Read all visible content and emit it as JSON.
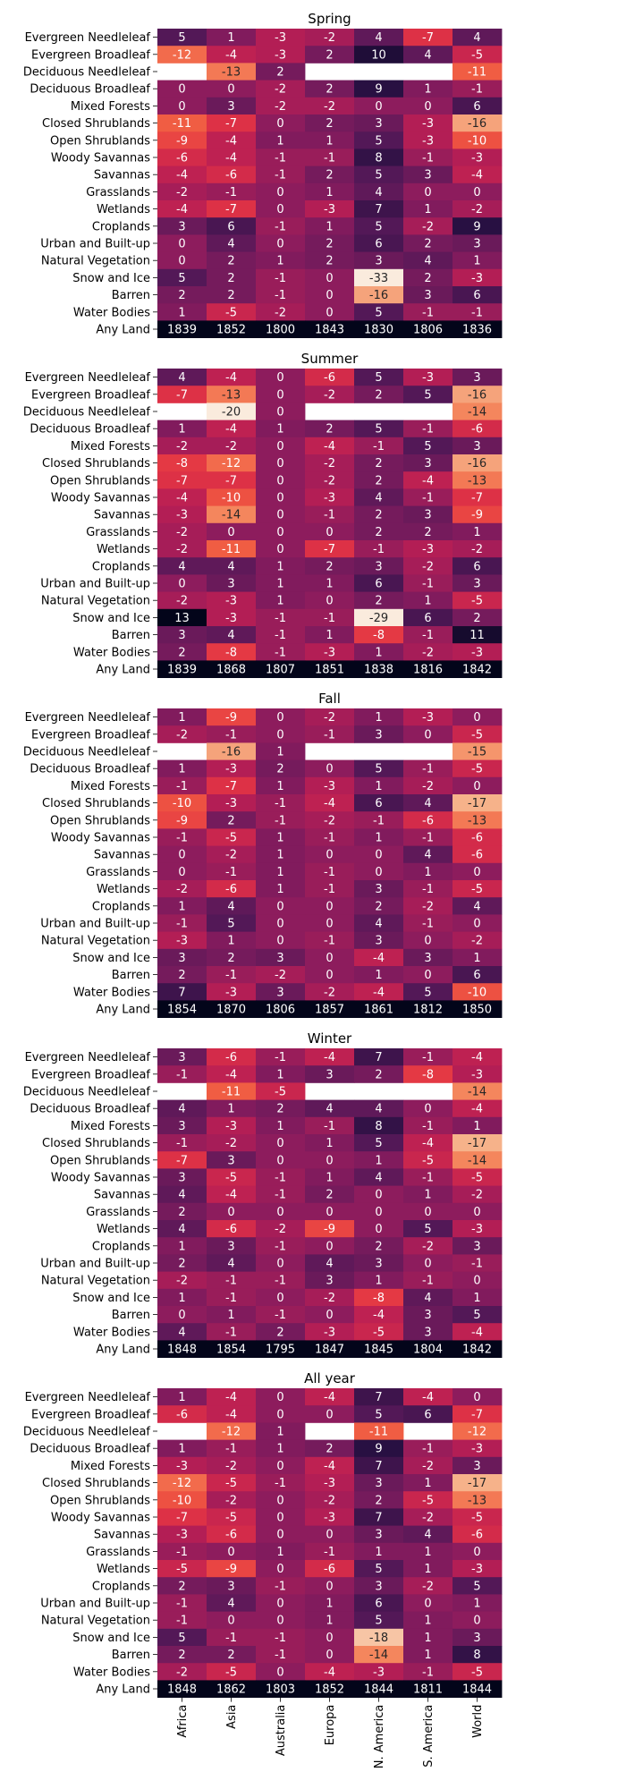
{
  "chart_data": {
    "type": "heatmap",
    "rows": [
      "Evergreen Needleleaf",
      "Evergreen Broadleaf",
      "Deciduous Needleleaf",
      "Deciduous Broadleaf",
      "Mixed Forests",
      "Closed Shrublands",
      "Open Shrublands",
      "Woody Savannas",
      "Savannas",
      "Grasslands",
      "Wetlands",
      "Croplands",
      "Urban and Built-up",
      "Natural Vegetation",
      "Snow and Ice",
      "Barren",
      "Water Bodies",
      "Any Land"
    ],
    "columns": [
      "Africa",
      "Asia",
      "Australia",
      "Europa",
      "N. America",
      "S. America",
      "World"
    ],
    "color_range": [
      -20,
      13
    ],
    "panels": [
      {
        "title": "Spring",
        "values": [
          [
            5,
            1,
            -3,
            -2,
            4,
            -7,
            4
          ],
          [
            -12,
            -4,
            -3,
            2,
            10,
            4,
            -5
          ],
          [
            null,
            -13,
            2,
            null,
            null,
            null,
            -11
          ],
          [
            0,
            0,
            -2,
            2,
            9,
            1,
            -1
          ],
          [
            0,
            3,
            -2,
            -2,
            0,
            0,
            6
          ],
          [
            -11,
            -7,
            0,
            2,
            3,
            -3,
            -16
          ],
          [
            -9,
            -4,
            1,
            1,
            5,
            -3,
            -10
          ],
          [
            -6,
            -4,
            -1,
            -1,
            8,
            -1,
            -3
          ],
          [
            -4,
            -6,
            -1,
            2,
            5,
            3,
            -4
          ],
          [
            -2,
            -1,
            0,
            1,
            4,
            0,
            0
          ],
          [
            -4,
            -7,
            0,
            -3,
            7,
            1,
            -2
          ],
          [
            3,
            6,
            -1,
            1,
            5,
            -2,
            9
          ],
          [
            0,
            4,
            0,
            2,
            6,
            2,
            3
          ],
          [
            0,
            2,
            1,
            2,
            3,
            4,
            1
          ],
          [
            5,
            2,
            -1,
            0,
            -33,
            2,
            -3
          ],
          [
            2,
            2,
            -1,
            0,
            -16,
            3,
            6
          ],
          [
            1,
            -5,
            -2,
            0,
            5,
            -1,
            -1
          ],
          [
            1839,
            1852,
            1800,
            1843,
            1830,
            1806,
            1836
          ]
        ]
      },
      {
        "title": "Summer",
        "values": [
          [
            4,
            -4,
            0,
            -6,
            5,
            -3,
            3
          ],
          [
            -7,
            -13,
            0,
            -2,
            2,
            5,
            -16
          ],
          [
            null,
            -20,
            0,
            null,
            null,
            null,
            -14
          ],
          [
            1,
            -4,
            1,
            2,
            5,
            -1,
            -6
          ],
          [
            -2,
            -2,
            0,
            -4,
            -1,
            5,
            3
          ],
          [
            -8,
            -12,
            0,
            -2,
            2,
            3,
            -16
          ],
          [
            -7,
            -7,
            0,
            -2,
            2,
            -4,
            -13
          ],
          [
            -4,
            -10,
            0,
            -3,
            4,
            -1,
            -7
          ],
          [
            -3,
            -14,
            0,
            -1,
            2,
            3,
            -9
          ],
          [
            -2,
            0,
            0,
            0,
            2,
            2,
            1
          ],
          [
            -2,
            -11,
            0,
            -7,
            -1,
            -3,
            -2
          ],
          [
            4,
            4,
            1,
            2,
            3,
            -2,
            6
          ],
          [
            0,
            3,
            1,
            1,
            6,
            -1,
            3
          ],
          [
            -2,
            -3,
            1,
            0,
            2,
            1,
            -5
          ],
          [
            13,
            -3,
            -1,
            -1,
            -29,
            6,
            2
          ],
          [
            3,
            4,
            -1,
            1,
            -8,
            -1,
            11
          ],
          [
            2,
            -8,
            -1,
            -3,
            1,
            -2,
            -3
          ],
          [
            1839,
            1868,
            1807,
            1851,
            1838,
            1816,
            1842
          ]
        ]
      },
      {
        "title": "Fall",
        "values": [
          [
            1,
            -9,
            0,
            -2,
            1,
            -3,
            0
          ],
          [
            -2,
            -1,
            0,
            -1,
            3,
            0,
            -5
          ],
          [
            null,
            -16,
            1,
            null,
            null,
            null,
            -15
          ],
          [
            1,
            -3,
            2,
            0,
            5,
            -1,
            -5
          ],
          [
            -1,
            -7,
            1,
            -3,
            1,
            -2,
            0
          ],
          [
            -10,
            -3,
            -1,
            -4,
            6,
            4,
            -17
          ],
          [
            -9,
            2,
            -1,
            -2,
            -1,
            -6,
            -13
          ],
          [
            -1,
            -5,
            1,
            -1,
            1,
            -1,
            -6
          ],
          [
            0,
            -2,
            1,
            0,
            0,
            4,
            -6
          ],
          [
            0,
            -1,
            1,
            -1,
            0,
            1,
            0
          ],
          [
            -2,
            -6,
            1,
            -1,
            3,
            -1,
            -5
          ],
          [
            1,
            4,
            0,
            0,
            2,
            -2,
            4
          ],
          [
            -1,
            5,
            0,
            0,
            4,
            -1,
            0
          ],
          [
            -3,
            1,
            0,
            -1,
            3,
            0,
            -2
          ],
          [
            3,
            2,
            3,
            0,
            -4,
            3,
            1
          ],
          [
            2,
            -1,
            -2,
            0,
            1,
            0,
            6
          ],
          [
            7,
            -3,
            3,
            -2,
            -4,
            5,
            -10
          ],
          [
            1854,
            1870,
            1806,
            1857,
            1861,
            1812,
            1850
          ]
        ]
      },
      {
        "title": "Winter",
        "values": [
          [
            3,
            -6,
            -1,
            -4,
            7,
            -1,
            -4
          ],
          [
            -1,
            -4,
            1,
            3,
            2,
            -8,
            -3
          ],
          [
            null,
            -11,
            -5,
            null,
            null,
            null,
            -14
          ],
          [
            4,
            1,
            2,
            4,
            4,
            0,
            -4
          ],
          [
            3,
            -3,
            1,
            -1,
            8,
            -1,
            1
          ],
          [
            -1,
            -2,
            0,
            1,
            5,
            -4,
            -17
          ],
          [
            -7,
            3,
            0,
            0,
            1,
            -5,
            -14
          ],
          [
            3,
            -5,
            -1,
            1,
            4,
            -1,
            -5
          ],
          [
            4,
            -4,
            -1,
            2,
            0,
            1,
            -2
          ],
          [
            2,
            0,
            0,
            0,
            0,
            0,
            0
          ],
          [
            4,
            -6,
            -2,
            -9,
            0,
            5,
            -3
          ],
          [
            1,
            3,
            -1,
            0,
            2,
            -2,
            3
          ],
          [
            2,
            4,
            0,
            4,
            3,
            0,
            -1
          ],
          [
            -2,
            -1,
            -1,
            3,
            1,
            -1,
            0
          ],
          [
            1,
            -1,
            0,
            -2,
            -8,
            4,
            1
          ],
          [
            0,
            1,
            -1,
            0,
            -4,
            3,
            5
          ],
          [
            4,
            -1,
            2,
            -3,
            -5,
            3,
            -4
          ],
          [
            1848,
            1854,
            1795,
            1847,
            1845,
            1804,
            1842
          ]
        ]
      },
      {
        "title": "All year",
        "values": [
          [
            1,
            -4,
            0,
            -4,
            7,
            -4,
            0
          ],
          [
            -6,
            -4,
            0,
            0,
            5,
            6,
            -7
          ],
          [
            null,
            -12,
            1,
            null,
            -11,
            null,
            -12
          ],
          [
            1,
            -1,
            1,
            2,
            9,
            -1,
            -3
          ],
          [
            -3,
            -2,
            0,
            -4,
            7,
            -2,
            3
          ],
          [
            -12,
            -5,
            -1,
            -3,
            3,
            1,
            -17
          ],
          [
            -10,
            -2,
            0,
            -2,
            2,
            -5,
            -13
          ],
          [
            -7,
            -5,
            0,
            -3,
            7,
            -2,
            -5
          ],
          [
            -3,
            -6,
            0,
            0,
            3,
            4,
            -6
          ],
          [
            -1,
            0,
            1,
            -1,
            1,
            1,
            0
          ],
          [
            -5,
            -9,
            0,
            -6,
            5,
            1,
            -3
          ],
          [
            2,
            3,
            -1,
            0,
            3,
            -2,
            5
          ],
          [
            -1,
            4,
            0,
            1,
            6,
            0,
            1
          ],
          [
            -1,
            0,
            0,
            1,
            5,
            1,
            0
          ],
          [
            5,
            -1,
            -1,
            0,
            -18,
            1,
            3
          ],
          [
            2,
            2,
            -1,
            0,
            -14,
            1,
            8
          ],
          [
            -2,
            -5,
            0,
            -4,
            -3,
            -1,
            -5
          ],
          [
            1848,
            1862,
            1803,
            1852,
            1844,
            1811,
            1844
          ]
        ]
      }
    ]
  }
}
